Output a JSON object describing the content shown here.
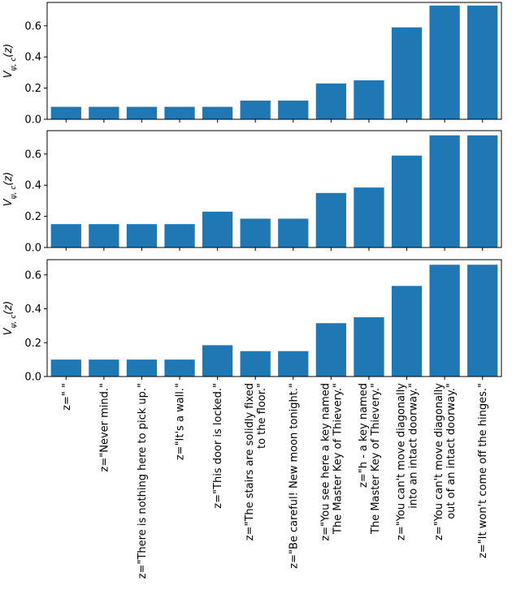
{
  "chart_data": [
    {
      "type": "bar",
      "ylabel_main": "V",
      "ylabel_sub": "ψ, c",
      "ylabel_arg": "(z)",
      "ylim": [
        0,
        0.75
      ],
      "yticks": [
        "0.0",
        "0.2",
        "0.4",
        "0.6"
      ],
      "ytick_values": [
        0.0,
        0.2,
        0.4,
        0.6
      ],
      "color": "#1f77b4",
      "values": [
        0.08,
        0.08,
        0.08,
        0.08,
        0.08,
        0.12,
        0.12,
        0.23,
        0.25,
        0.59,
        0.73,
        0.73
      ]
    },
    {
      "type": "bar",
      "ylabel_main": "V",
      "ylabel_sub": "ψ, c",
      "ylabel_arg": "(z)",
      "ylim": [
        0,
        0.75
      ],
      "yticks": [
        "0.0",
        "0.2",
        "0.4",
        "0.6"
      ],
      "ytick_values": [
        0.0,
        0.2,
        0.4,
        0.6
      ],
      "color": "#1f77b4",
      "values": [
        0.15,
        0.15,
        0.15,
        0.15,
        0.23,
        0.185,
        0.185,
        0.35,
        0.385,
        0.59,
        0.72,
        0.72
      ]
    },
    {
      "type": "bar",
      "ylabel_main": "V",
      "ylabel_sub": "ψ, c",
      "ylabel_arg": "(z)",
      "ylim": [
        0,
        0.69
      ],
      "yticks": [
        "0.0",
        "0.2",
        "0.4",
        "0.6"
      ],
      "ytick_values": [
        0.0,
        0.2,
        0.4,
        0.6
      ],
      "color": "#1f77b4",
      "values": [
        0.1,
        0.1,
        0.1,
        0.1,
        0.185,
        0.15,
        0.15,
        0.315,
        0.35,
        0.535,
        0.66,
        0.66
      ]
    }
  ],
  "categories": [
    [
      "z=\" \""
    ],
    [
      "z=\"Never mind.\""
    ],
    [
      "z=\"There is nothing here to pick up.\""
    ],
    [
      "z=\"It's a wall.\""
    ],
    [
      "z=\"This door is locked.\""
    ],
    [
      "z=\"The stairs are solidly fixed",
      "to the floor.\""
    ],
    [
      "z=\"Be careful!  New moon tonight.\""
    ],
    [
      "z=\"You see here a key named",
      "The Master Key of Thievery.\""
    ],
    [
      "z=\"h - a key named",
      "The Master Key of Thievery.\""
    ],
    [
      "z=\"You can't move diagonally",
      "into an intact doorway.\""
    ],
    [
      "z=\"You can't move diagonally",
      "out of an intact doorway.\""
    ],
    [
      "z=\"It won't come off the hinges.\""
    ]
  ]
}
